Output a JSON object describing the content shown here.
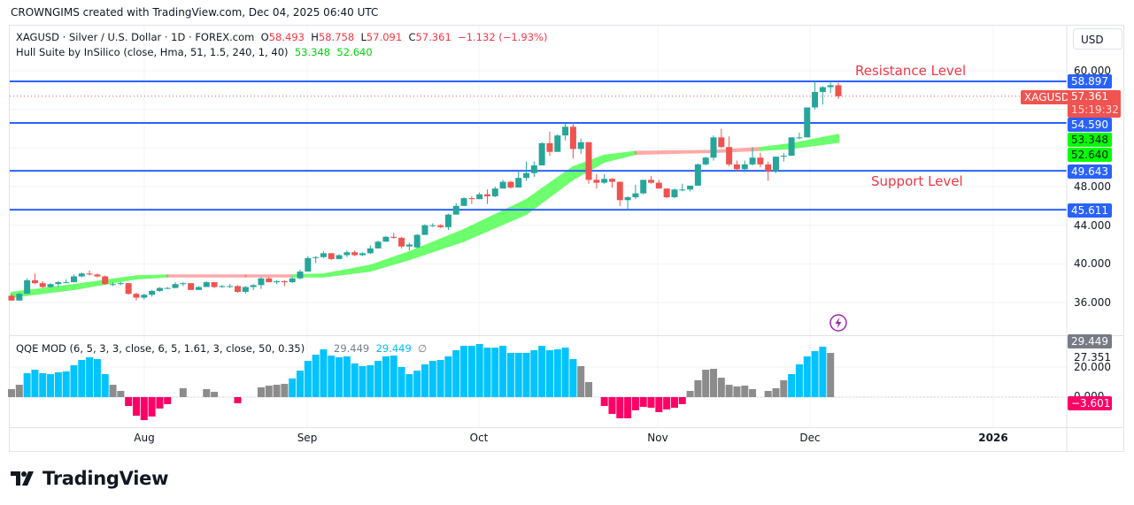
{
  "caption": "CROWNGIMS created with TradingView.com, Dec 04, 2025 06:40 UTC",
  "legend": {
    "symbol": "XAGUSD · Silver / U.S. Dollar · 1D · FOREX.com",
    "o_label": "O",
    "o": "58.493",
    "h_label": "H",
    "h": "58.758",
    "l_label": "L",
    "l": "57.091",
    "c_label": "C",
    "c": "57.361",
    "change": "−1.132 (−1.93%)",
    "hull_title": "Hull Suite by InSilico (close, Hma, 51, 1.5, 240, 1, 40)",
    "hull_v1": "53.348",
    "hull_v2": "52.640",
    "qqe_title": "QQE MOD (6, 5, 3, 3, close, 6, 5, 1.61, 3, close, 50, 0.35)",
    "qqe_v1": "29.449",
    "qqe_v2": "29.449",
    "qqe_v3": "∅"
  },
  "currency_button": "USD",
  "annotations": {
    "resistance": "Resistance Level",
    "support": "Support Level"
  },
  "price_axis": {
    "ticks": [
      "60.000",
      "48.000",
      "44.000",
      "40.000",
      "36.000"
    ]
  },
  "price_tags": {
    "r1": "58.897",
    "symbol": "XAGUSD",
    "last": "57.361",
    "countdown": "15:19:32",
    "r2": "54.590",
    "hull1": "53.348",
    "hull2": "52.640",
    "s1": "49.643",
    "s2": "45.611"
  },
  "qqe_axis": {
    "tag_grey": "29.449",
    "tick1": "27.351",
    "tick2": "20.000",
    "tick3": "0.000",
    "tag_red": "−3.601"
  },
  "time_axis": [
    "Aug",
    "Sep",
    "Oct",
    "Nov",
    "Dec",
    "2026"
  ],
  "brand": "TradingView",
  "colors": {
    "up": "#26a69a",
    "down": "#ef5350",
    "level_line": "#2962ff",
    "hull_up": "#66ff66",
    "hull_down": "#ff6666",
    "qqe_up": "#00c3ff",
    "qqe_down": "#ff0066",
    "qqe_neutral": "#8c8c8c",
    "annotation": "#f23645"
  },
  "chart_data": [
    {
      "type": "candlestick",
      "symbol": "XAGUSD",
      "interval": "1D",
      "ylim": [
        35,
        61
      ],
      "x_tick_labels": [
        "Aug",
        "Sep",
        "Oct",
        "Nov",
        "Dec",
        "2026"
      ],
      "y_tick_labels": [
        "60.000",
        "48.000",
        "44.000",
        "40.000",
        "36.000"
      ],
      "horizontal_levels": [
        58.897,
        54.59,
        49.643,
        45.611
      ],
      "last_price": 57.361,
      "ohlc": [
        [
          36.7,
          36.9,
          36.2,
          36.2
        ],
        [
          36.2,
          37.0,
          36.2,
          36.9
        ],
        [
          36.9,
          38.5,
          36.9,
          38.3
        ],
        [
          38.3,
          39.0,
          37.9,
          38.0
        ],
        [
          38.0,
          38.2,
          37.5,
          37.6
        ],
        [
          37.6,
          38.0,
          37.5,
          37.9
        ],
        [
          37.9,
          38.2,
          37.6,
          38.1
        ],
        [
          38.1,
          38.4,
          38.0,
          38.1
        ],
        [
          38.1,
          38.9,
          38.1,
          38.7
        ],
        [
          38.7,
          39.1,
          38.6,
          39.0
        ],
        [
          39.0,
          39.3,
          38.8,
          38.9
        ],
        [
          38.9,
          39.0,
          38.6,
          38.7
        ],
        [
          38.7,
          38.8,
          37.8,
          37.9
        ],
        [
          37.9,
          38.1,
          37.7,
          37.9
        ],
        [
          37.9,
          38.1,
          37.8,
          38.0
        ],
        [
          38.0,
          38.0,
          36.8,
          36.9
        ],
        [
          36.9,
          37.0,
          36.2,
          36.5
        ],
        [
          36.5,
          36.9,
          36.3,
          36.8
        ],
        [
          36.8,
          37.3,
          36.6,
          37.2
        ],
        [
          37.2,
          37.6,
          37.1,
          37.5
        ],
        [
          37.5,
          37.6,
          37.4,
          37.5
        ],
        [
          37.5,
          38.1,
          37.5,
          37.9
        ],
        [
          37.9,
          38.1,
          37.7,
          38.0
        ],
        [
          38.0,
          38.0,
          37.3,
          37.3
        ],
        [
          37.3,
          37.7,
          37.3,
          37.6
        ],
        [
          37.6,
          38.2,
          37.6,
          38.1
        ],
        [
          38.1,
          38.1,
          37.5,
          37.6
        ],
        [
          37.6,
          37.8,
          37.5,
          37.7
        ],
        [
          37.7,
          37.9,
          37.5,
          37.7
        ],
        [
          37.7,
          37.8,
          37.0,
          37.1
        ],
        [
          37.1,
          37.7,
          36.9,
          37.6
        ],
        [
          37.6,
          37.9,
          37.3,
          37.8
        ],
        [
          37.8,
          38.6,
          37.4,
          38.5
        ],
        [
          38.5,
          38.6,
          38.1,
          38.1
        ],
        [
          38.1,
          38.3,
          37.9,
          38.2
        ],
        [
          38.2,
          38.3,
          37.7,
          38.1
        ],
        [
          38.1,
          38.6,
          38.0,
          38.5
        ],
        [
          38.5,
          39.4,
          38.4,
          39.2
        ],
        [
          39.2,
          40.8,
          39.2,
          40.6
        ],
        [
          40.6,
          40.8,
          40.1,
          40.7
        ],
        [
          40.7,
          41.3,
          40.6,
          41.1
        ],
        [
          41.1,
          41.1,
          40.4,
          40.5
        ],
        [
          40.5,
          41.0,
          40.5,
          40.9
        ],
        [
          40.9,
          41.4,
          40.7,
          41.2
        ],
        [
          41.2,
          41.4,
          40.8,
          40.9
        ],
        [
          40.9,
          41.2,
          40.8,
          41.1
        ],
        [
          41.1,
          41.9,
          41.0,
          41.6
        ],
        [
          41.6,
          42.4,
          41.6,
          42.3
        ],
        [
          42.3,
          42.9,
          42.3,
          42.8
        ],
        [
          42.8,
          43.2,
          42.6,
          42.7
        ],
        [
          42.7,
          42.8,
          41.6,
          41.8
        ],
        [
          41.8,
          42.2,
          41.4,
          42.0
        ],
        [
          41.7,
          43.1,
          41.6,
          43.0
        ],
        [
          43.0,
          44.1,
          43.0,
          44.0
        ],
        [
          44.0,
          44.2,
          43.8,
          44.0
        ],
        [
          44.0,
          44.1,
          43.7,
          43.8
        ],
        [
          43.8,
          45.2,
          43.5,
          45.1
        ],
        [
          45.1,
          46.3,
          45.1,
          46.0
        ],
        [
          46.0,
          46.9,
          46.0,
          46.8
        ],
        [
          46.8,
          47.0,
          46.2,
          46.7
        ],
        [
          46.7,
          47.4,
          46.7,
          47.2
        ],
        [
          47.2,
          47.7,
          46.2,
          47.0
        ],
        [
          47.0,
          48.0,
          46.9,
          47.8
        ],
        [
          47.8,
          48.7,
          47.8,
          48.5
        ],
        [
          48.5,
          48.6,
          47.8,
          47.9
        ],
        [
          47.9,
          49.6,
          47.9,
          48.9
        ],
        [
          48.9,
          50.6,
          48.6,
          49.4
        ],
        [
          49.4,
          50.6,
          49.0,
          50.2
        ],
        [
          50.2,
          52.6,
          50.2,
          52.5
        ],
        [
          52.5,
          53.7,
          51.2,
          51.6
        ],
        [
          51.6,
          53.4,
          51.6,
          53.3
        ],
        [
          53.3,
          54.6,
          52.8,
          54.2
        ],
        [
          54.2,
          54.6,
          50.9,
          51.9
        ],
        [
          51.9,
          53.0,
          51.4,
          52.6
        ],
        [
          52.6,
          52.6,
          48.3,
          48.7
        ],
        [
          48.7,
          49.3,
          47.8,
          48.4
        ],
        [
          48.4,
          49.3,
          48.3,
          48.8
        ],
        [
          48.8,
          48.9,
          47.9,
          48.5
        ],
        [
          48.5,
          48.5,
          46.0,
          46.6
        ],
        [
          46.6,
          47.0,
          45.6,
          46.9
        ],
        [
          46.9,
          48.2,
          46.7,
          47.3
        ],
        [
          47.3,
          48.7,
          47.2,
          48.7
        ],
        [
          48.7,
          49.1,
          48.3,
          48.4
        ],
        [
          48.4,
          48.7,
          47.8,
          47.8
        ],
        [
          47.8,
          47.8,
          46.8,
          46.9
        ],
        [
          46.9,
          47.8,
          46.8,
          47.7
        ],
        [
          47.7,
          48.3,
          47.5,
          47.7
        ],
        [
          47.7,
          48.1,
          47.5,
          48.1
        ],
        [
          48.1,
          50.4,
          48.1,
          50.3
        ],
        [
          50.3,
          51.1,
          50.2,
          51.0
        ],
        [
          51.0,
          53.3,
          50.7,
          53.1
        ],
        [
          53.1,
          54.0,
          52.0,
          52.1
        ],
        [
          52.1,
          53.2,
          50.1,
          50.3
        ],
        [
          50.3,
          50.7,
          49.6,
          49.8
        ],
        [
          49.8,
          50.7,
          49.5,
          50.3
        ],
        [
          50.3,
          52.1,
          50.2,
          51.0
        ],
        [
          51.0,
          51.5,
          50.0,
          50.3
        ],
        [
          50.3,
          50.6,
          48.6,
          49.6
        ],
        [
          49.6,
          51.1,
          49.4,
          51.1
        ],
        [
          51.1,
          51.5,
          50.6,
          51.2
        ],
        [
          51.2,
          53.1,
          51.2,
          53.1
        ],
        [
          53.1,
          53.6,
          52.9,
          53.1
        ],
        [
          53.1,
          56.2,
          53.1,
          56.2
        ],
        [
          56.2,
          58.9,
          56.0,
          57.8
        ],
        [
          57.8,
          58.4,
          56.5,
          58.3
        ],
        [
          58.3,
          58.9,
          57.7,
          58.5
        ],
        [
          58.493,
          58.758,
          57.091,
          57.361
        ]
      ],
      "hull_band": {
        "index": [
          0,
          8,
          16,
          20,
          30,
          36,
          40,
          46,
          51,
          58,
          66,
          72,
          76,
          80,
          90,
          96,
          100,
          106
        ],
        "upper": [
          37.0,
          37.8,
          38.7,
          38.8,
          38.8,
          38.8,
          38.9,
          39.8,
          41.2,
          43.5,
          46.6,
          50.0,
          51.2,
          51.6,
          51.7,
          52.0,
          52.4,
          53.348
        ],
        "lower": [
          36.6,
          37.4,
          38.5,
          38.7,
          38.7,
          38.7,
          38.7,
          39.3,
          40.5,
          42.4,
          45.2,
          48.8,
          50.6,
          51.4,
          51.6,
          51.8,
          52.0,
          52.64
        ],
        "trend": [
          "up",
          "up",
          "up",
          "down",
          "down",
          "up",
          "up",
          "up",
          "up",
          "up",
          "up",
          "up",
          "up",
          "down",
          "down",
          "up",
          "up",
          "up"
        ]
      }
    },
    {
      "type": "bar",
      "name": "QQE MOD",
      "ylim": [
        -18,
        38
      ],
      "y_tick_labels": [
        "29.449",
        "27.351",
        "20.000",
        "0.000",
        "−3.601"
      ],
      "values": [
        5.3,
        8.2,
        15.9,
        18.2,
        15.9,
        15.3,
        16.5,
        17.1,
        21.2,
        24.7,
        26.5,
        25.3,
        15.3,
        8.2,
        4.1,
        -5.9,
        -12.4,
        -15.3,
        -12.9,
        -7.6,
        -4.7,
        0,
        5.9,
        0,
        0,
        5.3,
        3.5,
        0,
        0,
        -4.1,
        0,
        0,
        6.5,
        7.6,
        8.2,
        8.8,
        12.4,
        17.6,
        24.1,
        28.2,
        31.8,
        27.6,
        26.5,
        27.1,
        22.4,
        20.6,
        21.2,
        24.1,
        27.1,
        27.6,
        20.0,
        15.3,
        17.6,
        21.8,
        24.1,
        24.7,
        27.1,
        31.2,
        34.1,
        34.1,
        35.3,
        32.9,
        32.9,
        34.1,
        29.4,
        29.4,
        29.4,
        31.2,
        34.1,
        31.2,
        31.8,
        32.9,
        25.3,
        20.6,
        10.0,
        0,
        -5.9,
        -11.2,
        -14.1,
        -14.1,
        -8.8,
        -6.5,
        -7.1,
        -10.0,
        -8.2,
        -7.1,
        -4.7,
        4.1,
        11.2,
        18.2,
        18.8,
        12.9,
        8.2,
        7.1,
        7.6,
        5.3,
        0,
        4.1,
        5.9,
        11.2,
        15.3,
        21.8,
        27.1,
        30.6,
        33.5,
        29.4
      ],
      "state": [
        "n",
        "n",
        "u",
        "u",
        "u",
        "u",
        "u",
        "u",
        "u",
        "u",
        "u",
        "u",
        "u",
        "n",
        "n",
        "d",
        "d",
        "d",
        "d",
        "d",
        "d",
        "n",
        "n",
        "n",
        "n",
        "n",
        "n",
        "n",
        "n",
        "d",
        "n",
        "n",
        "n",
        "n",
        "n",
        "n",
        "u",
        "u",
        "u",
        "u",
        "u",
        "u",
        "u",
        "u",
        "u",
        "u",
        "u",
        "u",
        "u",
        "u",
        "u",
        "u",
        "u",
        "u",
        "u",
        "u",
        "u",
        "u",
        "u",
        "u",
        "u",
        "u",
        "u",
        "u",
        "u",
        "u",
        "u",
        "u",
        "u",
        "u",
        "u",
        "u",
        "u",
        "n",
        "n",
        "n",
        "d",
        "d",
        "d",
        "d",
        "d",
        "d",
        "d",
        "d",
        "d",
        "d",
        "d",
        "n",
        "n",
        "n",
        "n",
        "n",
        "n",
        "n",
        "n",
        "n",
        "n",
        "n",
        "n",
        "n",
        "u",
        "u",
        "u",
        "u",
        "u"
      ]
    }
  ]
}
